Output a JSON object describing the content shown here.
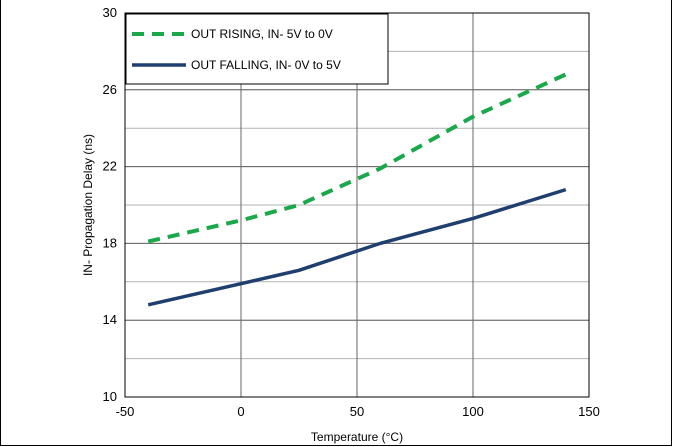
{
  "chart_data": {
    "type": "line",
    "xlabel": "Temperature (°C)",
    "ylabel": "IN- Propagation Delay (ns)",
    "xlim": [
      -50,
      150
    ],
    "ylim": [
      10,
      30
    ],
    "xticks": [
      -50,
      0,
      50,
      100,
      150
    ],
    "yticks": [
      10,
      14,
      18,
      22,
      26,
      30
    ],
    "x_gridlines": [
      -50,
      0,
      50,
      100,
      150
    ],
    "y_gridlines": [
      10,
      12,
      14,
      16,
      18,
      20,
      22,
      24,
      26,
      28,
      30
    ],
    "grid": true,
    "legend_position": "top-left",
    "series": [
      {
        "name": "OUT RISING, IN- 5V to 0V",
        "color": "#1aa84a",
        "style": "dashed",
        "x": [
          -40,
          0,
          25,
          60,
          100,
          140
        ],
        "y": [
          18.1,
          19.2,
          20.0,
          21.9,
          24.6,
          26.8
        ]
      },
      {
        "name": "OUT FALLING, IN- 0V to 5V",
        "color": "#1f3f6e",
        "style": "solid",
        "x": [
          -40,
          0,
          25,
          60,
          100,
          140
        ],
        "y": [
          14.8,
          15.9,
          16.6,
          18.0,
          19.3,
          20.8
        ]
      }
    ]
  }
}
